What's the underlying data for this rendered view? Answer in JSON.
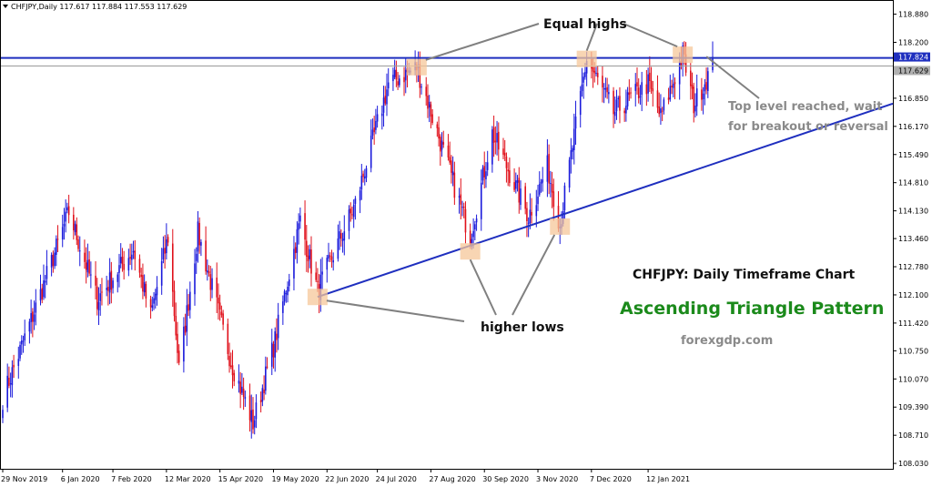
{
  "chart_data": {
    "type": "candlestick",
    "symbol_info": "CHFJPY,Daily  117.617 117.884 117.553 117.629",
    "y_ticks": [
      "118.880",
      "118.200",
      "117.520",
      "116.850",
      "116.170",
      "115.490",
      "114.810",
      "114.130",
      "113.460",
      "112.780",
      "112.100",
      "111.420",
      "110.750",
      "110.070",
      "109.390",
      "108.710",
      "108.030"
    ],
    "x_ticks": [
      "29 Nov 2019",
      "6 Jan 2020",
      "7 Feb 2020",
      "12 Mar 2020",
      "15 Apr 2020",
      "19 May 2020",
      "22 Jun 2020",
      "24 Jul 2020",
      "27 Aug 2020",
      "30 Sep 2020",
      "3 Nov 2020",
      "7 Dec 2020",
      "12 Jan 2021"
    ],
    "ylim": [
      107.9,
      119.2
    ],
    "price_tags": {
      "resistance": {
        "label": "117.824",
        "value": 117.824,
        "color": "#1f2fbf"
      },
      "last": {
        "label": "117.629",
        "value": 117.629,
        "color": "#b0b0b0"
      }
    },
    "colors": {
      "bull": "#1a1adb",
      "bear": "#e0101a",
      "trend": "#1f2fbf",
      "box": "#f5c79a",
      "leader": "#808080"
    },
    "anchors": [
      {
        "date": "2019-11-29",
        "close": 109.6
      },
      {
        "date": "2019-12-20",
        "close": 111.8
      },
      {
        "date": "2020-01-10",
        "close": 114.1
      },
      {
        "date": "2020-01-28",
        "close": 112.0
      },
      {
        "date": "2020-02-20",
        "close": 113.2
      },
      {
        "date": "2020-03-02",
        "close": 111.6
      },
      {
        "date": "2020-03-13",
        "close": 113.5
      },
      {
        "date": "2020-03-20",
        "close": 110.3
      },
      {
        "date": "2020-04-01",
        "close": 113.6
      },
      {
        "date": "2020-04-22",
        "close": 110.5
      },
      {
        "date": "2020-05-06",
        "close": 109.0
      },
      {
        "date": "2020-05-20",
        "close": 111.0
      },
      {
        "date": "2020-06-05",
        "close": 113.9
      },
      {
        "date": "2020-06-16",
        "close": 112.2
      },
      {
        "date": "2020-07-10",
        "close": 114.3
      },
      {
        "date": "2020-07-31",
        "close": 117.2
      },
      {
        "date": "2020-08-18",
        "close": 117.6
      },
      {
        "date": "2020-08-28",
        "close": 116.4
      },
      {
        "date": "2020-09-21",
        "close": 113.5
      },
      {
        "date": "2020-10-05",
        "close": 116.0
      },
      {
        "date": "2020-10-28",
        "close": 114.0
      },
      {
        "date": "2020-11-09",
        "close": 115.2
      },
      {
        "date": "2020-11-17",
        "close": 113.8
      },
      {
        "date": "2020-12-04",
        "close": 117.8
      },
      {
        "date": "2020-12-21",
        "close": 116.5
      },
      {
        "date": "2021-01-12",
        "close": 117.2
      },
      {
        "date": "2021-01-20",
        "close": 116.4
      },
      {
        "date": "2021-02-03",
        "close": 117.9
      },
      {
        "date": "2021-02-10",
        "close": 116.7
      },
      {
        "date": "2021-02-22",
        "close": 117.63
      }
    ],
    "resistance_level": 117.824,
    "trend_line": {
      "from": {
        "date": "2020-06-16",
        "value": 112.05
      },
      "to": {
        "date": "2021-04-25",
        "value": 116.05
      }
    },
    "highlight_points": [
      {
        "date": "2020-08-18",
        "value": 117.6
      },
      {
        "date": "2020-12-04",
        "value": 117.8
      },
      {
        "date": "2021-02-03",
        "value": 117.9
      },
      {
        "date": "2020-06-16",
        "value": 112.05
      },
      {
        "date": "2020-09-21",
        "value": 113.15
      },
      {
        "date": "2020-11-17",
        "value": 113.75
      }
    ],
    "annotations": {
      "equal_highs": "Equal highs",
      "higher_lows": "higher lows",
      "top_level_1": "Top level reached, wait",
      "top_level_2": "for breakout or reversal",
      "chart_name": "CHFJPY: Daily Timeframe Chart",
      "pattern": "Ascending Triangle Pattern",
      "website": "forexgdp.com"
    }
  }
}
